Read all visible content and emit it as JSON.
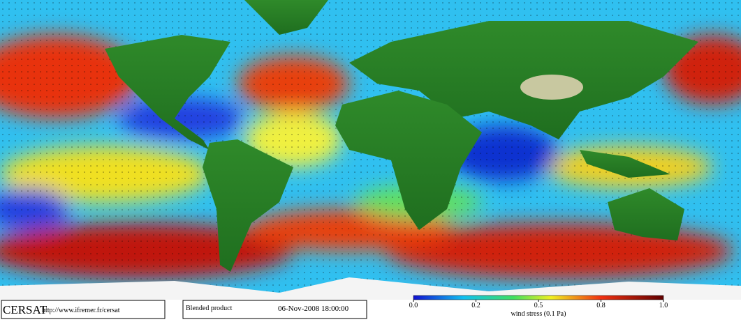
{
  "footer": {
    "logo": "CERSAT",
    "url": "http://www.ifremer.fr/cersat",
    "product": "Blended product",
    "date": "06-Nov-2008 18:00:00"
  },
  "colorbar": {
    "title": "wind stress (0.1 Pa)",
    "ticks": [
      {
        "value": 0,
        "label": "0.0"
      },
      {
        "value": 0.2,
        "label": "0.2"
      },
      {
        "value": 0.5,
        "label": "0.5"
      },
      {
        "value": 0.8,
        "label": "0.8"
      },
      {
        "value": 1,
        "label": "1.0"
      }
    ]
  }
}
